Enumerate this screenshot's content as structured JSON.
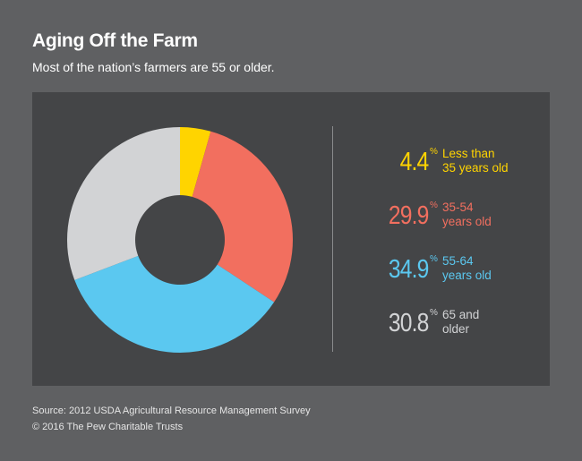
{
  "title": "Aging Off the Farm",
  "subtitle": "Most of the nation’s farmers are 55 or older.",
  "source": "Source: 2012 USDA Agricultural Resource Management Survey",
  "copyright": "© 2016 The Pew Charitable Trusts",
  "chart_data": {
    "type": "pie",
    "variant": "donut",
    "title": "Aging Off the Farm",
    "categories": [
      "Less than 35 years old",
      "35-54 years old",
      "55-64 years old",
      "65 and older"
    ],
    "values": [
      4.4,
      29.9,
      34.9,
      30.8
    ],
    "value_labels": [
      "4.4",
      "29.9",
      "34.9",
      "30.8"
    ],
    "unit": "%",
    "colors": [
      "#ffd400",
      "#f26f5f",
      "#5bc8f0",
      "#d2d3d5"
    ],
    "legend": {
      "placement": "right",
      "entries": [
        {
          "value": "4.4",
          "unit": "%",
          "label": "Less than\n35 years old",
          "color": "#ffd400"
        },
        {
          "value": "29.9",
          "unit": "%",
          "label": "35-54\nyears old",
          "color": "#f26f5f"
        },
        {
          "value": "34.9",
          "unit": "%",
          "label": "55-64\nyears old",
          "color": "#5bc8f0"
        },
        {
          "value": "30.8",
          "unit": "%",
          "label": "65 and\nolder",
          "color": "#d2d3d5"
        }
      ]
    }
  }
}
